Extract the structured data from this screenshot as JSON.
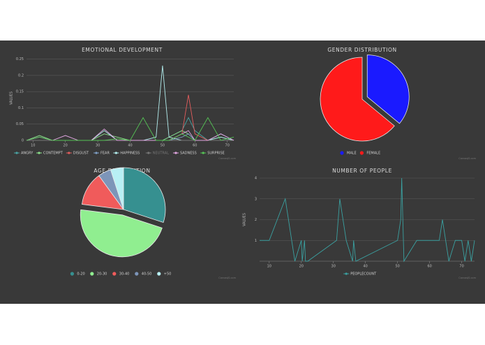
{
  "chart_data": [
    {
      "type": "line",
      "title": "EMOTIONAL DEVELOPMENT",
      "y_label": "VALUES",
      "credit": "CanvasJS.com",
      "x": [
        8,
        12,
        16,
        20,
        24,
        28,
        32,
        36,
        40,
        44,
        48,
        50,
        52,
        56,
        58,
        60,
        64,
        68,
        72
      ],
      "xlim": [
        8,
        72
      ],
      "xticks": [
        10,
        20,
        30,
        40,
        50,
        60,
        70
      ],
      "ylim": [
        0,
        0.26
      ],
      "yticks": [
        0,
        0.05,
        0.1,
        0.15,
        0.2,
        0.25
      ],
      "grid": true,
      "series": [
        {
          "name": "ANGRY",
          "color": "#4aa3a3",
          "values": [
            0,
            0.01,
            0,
            0,
            0,
            0,
            0,
            0,
            0,
            0,
            0,
            0,
            0.01,
            0.03,
            0.07,
            0.03,
            0,
            0.01,
            0
          ]
        },
        {
          "name": "CONTEMPT",
          "color": "#8be08b",
          "values": [
            0,
            0.015,
            0,
            0,
            0,
            0,
            0.02,
            0.01,
            0,
            0,
            0,
            0,
            0.01,
            0.03,
            0.02,
            0,
            0,
            0.01,
            0
          ]
        },
        {
          "name": "DISGUST",
          "color": "#e35d5d",
          "values": [
            0,
            0,
            0,
            0,
            0,
            0,
            0,
            0,
            0,
            0,
            0,
            0,
            0,
            0.02,
            0.14,
            0.02,
            0,
            0,
            0
          ]
        },
        {
          "name": "FEAR",
          "color": "#7f9fc6",
          "values": [
            0,
            0,
            0,
            0,
            0,
            0,
            0,
            0,
            0,
            0,
            0,
            0,
            0,
            0.01,
            0.02,
            0,
            0,
            0.02,
            0
          ]
        },
        {
          "name": "HAPPINESS",
          "color": "#b3eeee",
          "values": [
            0,
            0,
            0,
            0,
            0,
            0,
            0.03,
            0,
            0,
            0,
            0.01,
            0.23,
            0.01,
            0,
            0,
            0,
            0,
            0.01,
            0
          ]
        },
        {
          "name": "NEUTRAL",
          "color": "#777777",
          "values": [
            0,
            0,
            0,
            0,
            0,
            0,
            0,
            0,
            0,
            0,
            0,
            0,
            0,
            0,
            0,
            0,
            0,
            0,
            0
          ]
        },
        {
          "name": "SADNESS",
          "color": "#e2a6e2",
          "values": [
            0,
            0.01,
            0,
            0.015,
            0,
            0,
            0.035,
            0,
            0,
            0,
            0,
            0,
            0,
            0.02,
            0.03,
            0,
            0,
            0.02,
            0
          ]
        },
        {
          "name": "SURPRISE",
          "color": "#55c455",
          "values": [
            0,
            0.01,
            0,
            0,
            0,
            0,
            0,
            0.005,
            0,
            0.07,
            0,
            0,
            0,
            0.02,
            0.01,
            0,
            0.07,
            0,
            0.01
          ]
        }
      ]
    },
    {
      "type": "pie",
      "title": "GENDER DISTRIBUTION",
      "credit": "CanvasJS.com",
      "categories": [
        "MALE",
        "FEMALE"
      ],
      "values": [
        36,
        64
      ],
      "colors": [
        "#1a1aff",
        "#ff1a1a"
      ],
      "exploded": 0
    },
    {
      "type": "pie",
      "title": "AGE DISTRIBUTION",
      "credit": "CanvasJS.com",
      "categories": [
        "0-20",
        "20-30",
        "30-40",
        "40-50",
        "+50"
      ],
      "values": [
        30,
        47,
        13,
        5,
        5
      ],
      "colors": [
        "#369090",
        "#90ee90",
        "#f05b5b",
        "#7d95b9",
        "#b8f0f5"
      ],
      "exploded": 1
    },
    {
      "type": "line",
      "title": "NUMBER OF PEOPLE",
      "y_label": "VALUES",
      "credit": "CanvasJS.com",
      "x": [
        7,
        10,
        15,
        18,
        20,
        20.3,
        21,
        21.3,
        22,
        31,
        32,
        34,
        36,
        36.3,
        37,
        50,
        51,
        51.3,
        52,
        56,
        62,
        63,
        64,
        66,
        68,
        70,
        71,
        72,
        73,
        74
      ],
      "xlim": [
        7,
        74
      ],
      "xticks": [
        10,
        20,
        30,
        40,
        50,
        60,
        70
      ],
      "ylim": [
        0,
        4
      ],
      "yticks": [
        1,
        2,
        3,
        4
      ],
      "grid": true,
      "series": [
        {
          "name": "PEOPLECOUNT",
          "color": "#3aa0a0",
          "values": [
            1,
            1,
            3,
            0,
            1,
            0,
            1,
            0,
            0,
            1,
            3,
            1,
            0,
            1,
            0,
            1,
            2,
            4,
            0,
            1,
            1,
            1,
            2,
            0,
            1,
            1,
            0,
            1,
            0,
            1
          ]
        }
      ]
    }
  ]
}
